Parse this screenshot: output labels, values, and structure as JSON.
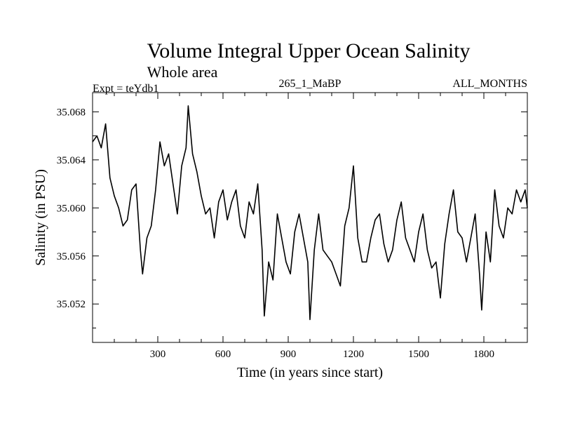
{
  "chart_data": {
    "type": "line",
    "title": "Volume Integral Upper Ocean Salinity",
    "subtitle": "Whole area",
    "expt_label": "Expt = teYdb1",
    "run_label": "265_1_MaBP",
    "months_label": "ALL_MONTHS",
    "xlabel": "Time (in years since start)",
    "ylabel": "Salinity (in PSU)",
    "xlim": [
      0,
      2000
    ],
    "ylim": [
      35.0488,
      35.0696
    ],
    "x_ticks": [
      300,
      600,
      900,
      1200,
      1500,
      1800
    ],
    "x_tick_labels": [
      "300",
      "600",
      "900",
      "1200",
      "1500",
      "1800"
    ],
    "y_ticks": [
      35.052,
      35.056,
      35.06,
      35.064,
      35.068
    ],
    "y_tick_labels": [
      "35.052",
      "35.056",
      "35.060",
      "35.064",
      "35.068"
    ],
    "series": [
      {
        "name": "Salinity",
        "color": "#000000",
        "x": [
          0,
          20,
          40,
          60,
          80,
          100,
          120,
          140,
          160,
          180,
          200,
          220,
          230,
          250,
          270,
          290,
          310,
          330,
          350,
          370,
          390,
          410,
          430,
          440,
          460,
          480,
          500,
          520,
          540,
          560,
          580,
          600,
          620,
          640,
          660,
          680,
          700,
          720,
          740,
          760,
          780,
          790,
          810,
          830,
          850,
          870,
          890,
          910,
          930,
          950,
          970,
          990,
          1000,
          1020,
          1040,
          1060,
          1080,
          1100,
          1120,
          1140,
          1160,
          1180,
          1200,
          1220,
          1240,
          1260,
          1280,
          1300,
          1320,
          1340,
          1360,
          1380,
          1400,
          1420,
          1440,
          1460,
          1480,
          1500,
          1520,
          1540,
          1560,
          1580,
          1600,
          1620,
          1640,
          1660,
          1680,
          1700,
          1720,
          1740,
          1760,
          1780,
          1790,
          1810,
          1830,
          1850,
          1870,
          1890,
          1910,
          1930,
          1950,
          1970,
          1990,
          2000
        ],
        "values": [
          35.0655,
          35.066,
          35.065,
          35.067,
          35.0625,
          35.061,
          35.06,
          35.0585,
          35.059,
          35.0615,
          35.062,
          35.0565,
          35.0545,
          35.0575,
          35.0585,
          35.0615,
          35.0655,
          35.0635,
          35.0645,
          35.062,
          35.0595,
          35.0635,
          35.065,
          35.0685,
          35.0645,
          35.063,
          35.061,
          35.0595,
          35.06,
          35.0575,
          35.0605,
          35.0615,
          35.059,
          35.0605,
          35.0615,
          35.0585,
          35.0575,
          35.0605,
          35.0595,
          35.062,
          35.0565,
          35.051,
          35.0555,
          35.054,
          35.0595,
          35.0575,
          35.0555,
          35.0545,
          35.058,
          35.0595,
          35.0575,
          35.0555,
          35.0507,
          35.0565,
          35.0595,
          35.0565,
          35.056,
          35.0555,
          35.0545,
          35.0535,
          35.0585,
          35.06,
          35.0635,
          35.0575,
          35.0555,
          35.0555,
          35.0575,
          35.059,
          35.0595,
          35.057,
          35.0555,
          35.0565,
          35.059,
          35.0605,
          35.0575,
          35.0565,
          35.0555,
          35.058,
          35.0595,
          35.0565,
          35.055,
          35.0555,
          35.0525,
          35.057,
          35.0595,
          35.0615,
          35.058,
          35.0575,
          35.0555,
          35.0575,
          35.0595,
          35.0545,
          35.0515,
          35.058,
          35.0555,
          35.0615,
          35.0585,
          35.0575,
          35.06,
          35.0595,
          35.0615,
          35.0605,
          35.0615,
          35.06
        ]
      }
    ]
  }
}
